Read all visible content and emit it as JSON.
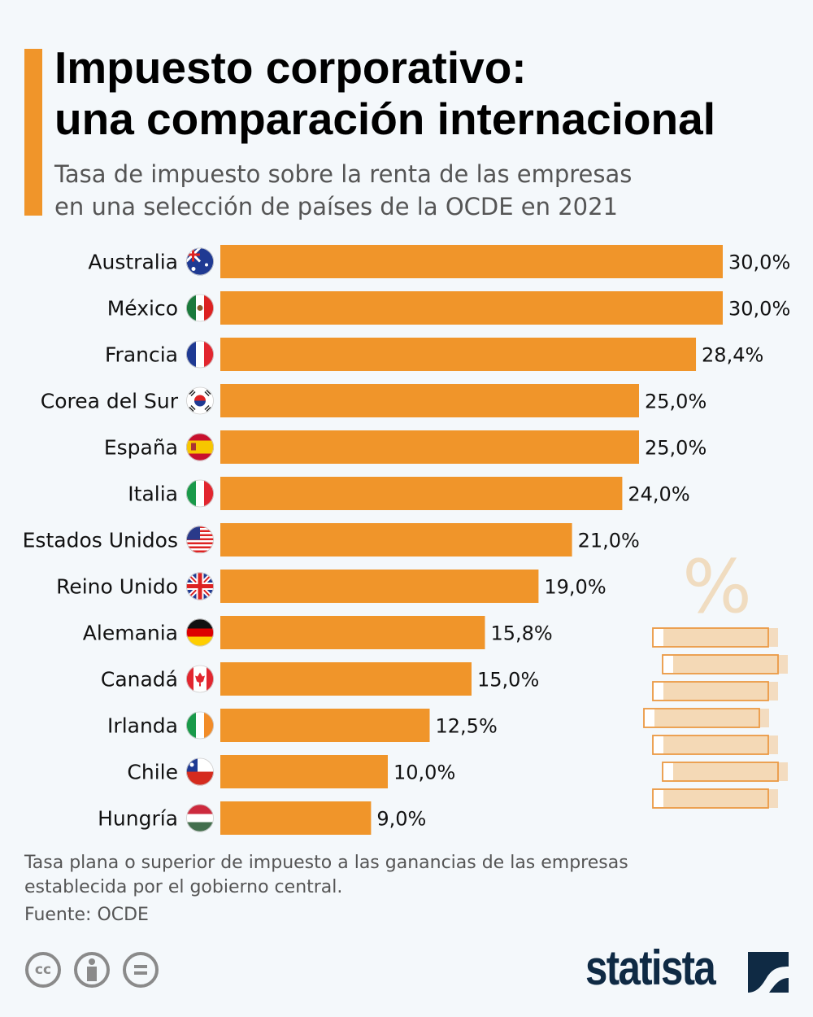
{
  "header": {
    "title_line1": "Impuesto corporativo:",
    "title_line2": "una comparación internacional",
    "subtitle_line1": "Tasa de impuesto sobre la renta de las empresas",
    "subtitle_line2": "en una selección de países de la OCDE en 2021"
  },
  "colors": {
    "bar": "#f0952a",
    "accent": "#f0952a",
    "logo": "#0f2a44",
    "decoration": "#f3d9b8"
  },
  "chart_data": {
    "type": "bar",
    "orientation": "horizontal",
    "categories": [
      "Australia",
      "México",
      "Francia",
      "Corea del Sur",
      "España",
      "Italia",
      "Estados Unidos",
      "Reino Unido",
      "Alemania",
      "Canadá",
      "Irlanda",
      "Chile",
      "Hungría"
    ],
    "values": [
      30.0,
      30.0,
      28.4,
      25.0,
      25.0,
      24.0,
      21.0,
      19.0,
      15.8,
      15.0,
      12.5,
      10.0,
      9.0
    ],
    "value_labels": [
      "30,0%",
      "30,0%",
      "28,4%",
      "25,0%",
      "25,0%",
      "24,0%",
      "21,0%",
      "19,0%",
      "15,8%",
      "15,0%",
      "12,5%",
      "10,0%",
      "9,0%"
    ],
    "flag_icons": [
      "australia-flag-icon",
      "mexico-flag-icon",
      "france-flag-icon",
      "south-korea-flag-icon",
      "spain-flag-icon",
      "italy-flag-icon",
      "usa-flag-icon",
      "uk-flag-icon",
      "germany-flag-icon",
      "canada-flag-icon",
      "ireland-flag-icon",
      "chile-flag-icon",
      "hungary-flag-icon"
    ],
    "xlim": [
      0,
      30
    ],
    "grid": false,
    "legend": "none",
    "unit": "%"
  },
  "decoration": {
    "symbol": "%",
    "icon": "coin-stack-icon"
  },
  "footer": {
    "note_line1": "Tasa plana o superior de impuesto a las ganancias de las empresas",
    "note_line2": "establecida por el gobierno central.",
    "source": "Fuente: OCDE",
    "license_icons": [
      "cc-icon",
      "attribution-icon",
      "no-derivatives-icon"
    ],
    "cc_text": "cc",
    "logo": "statista"
  }
}
